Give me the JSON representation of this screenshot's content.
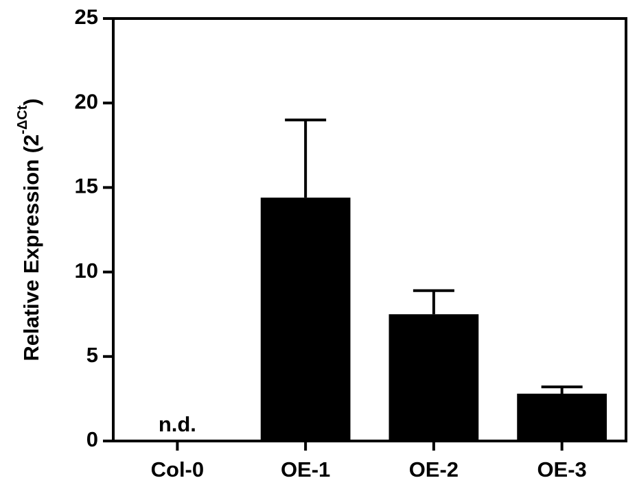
{
  "chart_data": {
    "type": "bar",
    "y_label": "Relative Expression (2",
    "y_label_superscript": "-ΔCt",
    "y_label_end": ")",
    "categories": [
      "Col-0",
      "OE-1",
      "OE-2",
      "OE-3"
    ],
    "values": [
      null,
      14.4,
      7.5,
      2.8
    ],
    "value_labels": [
      "n.d.",
      null,
      null,
      null
    ],
    "errors": [
      null,
      4.6,
      1.4,
      0.4
    ],
    "color": "#000000",
    "ylim": [
      0,
      25
    ],
    "yticks": [
      0,
      5,
      10,
      15,
      20,
      25
    ],
    "grid": false
  }
}
